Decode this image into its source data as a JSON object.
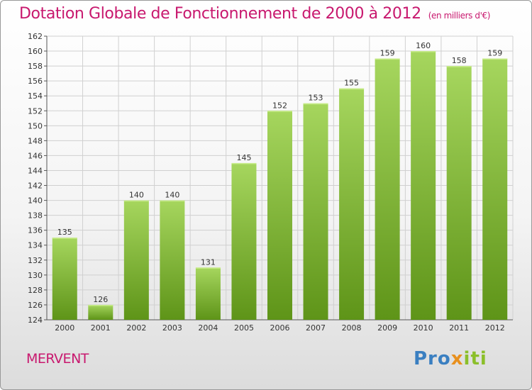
{
  "header": {
    "title": "Dotation Globale de Fonctionnement de 2000 à 2012",
    "unit": "(en milliers d'€)"
  },
  "footer": {
    "commune": "MERVENT",
    "logo_text": "Proxiti"
  },
  "colors": {
    "title": "#c8186e",
    "bar_light": "#9fd156",
    "bar_dark": "#5e9418",
    "grid": "#cccccc"
  },
  "chart_data": {
    "type": "bar",
    "title": "Dotation Globale de Fonctionnement de 2000 à 2012",
    "subtitle": "(en milliers d'€)",
    "xlabel": "",
    "ylabel": "",
    "categories": [
      "2000",
      "2001",
      "2002",
      "2003",
      "2004",
      "2005",
      "2006",
      "2007",
      "2008",
      "2009",
      "2010",
      "2011",
      "2012"
    ],
    "values": [
      135,
      126,
      140,
      140,
      131,
      145,
      152,
      153,
      155,
      159,
      160,
      158,
      159
    ],
    "ylim": [
      124,
      162
    ],
    "yticks": [
      124,
      126,
      128,
      130,
      132,
      134,
      136,
      138,
      140,
      142,
      144,
      146,
      148,
      150,
      152,
      154,
      156,
      158,
      160,
      162
    ],
    "grid": true,
    "data_labels": true
  }
}
